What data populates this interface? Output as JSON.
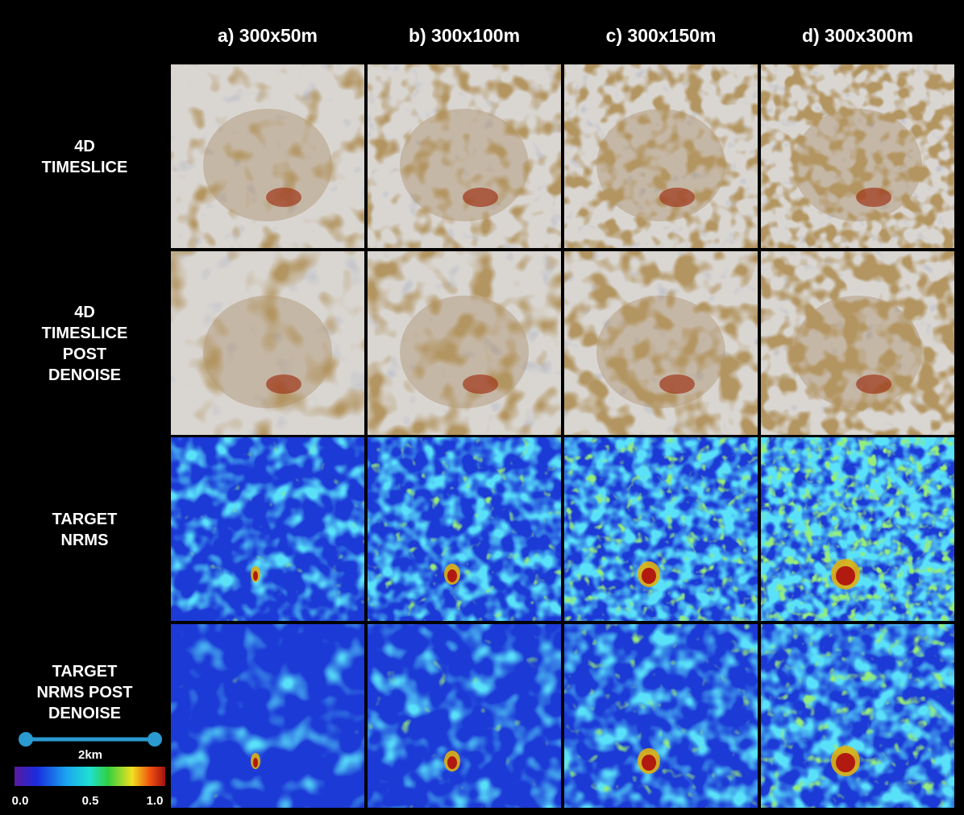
{
  "columns": [
    "a) 300x50m",
    "b) 300x100m",
    "c) 300x150m",
    "d) 300x300m"
  ],
  "rows": [
    [
      "4D",
      "TIMESLICE"
    ],
    [
      "4D",
      "TIMESLICE",
      "POST",
      "DENOISE"
    ],
    [
      "TARGET",
      "NRMS"
    ],
    [
      "TARGET",
      "NRMS POST",
      "DENOISE"
    ]
  ],
  "scale_bar": {
    "label": "2km"
  },
  "colorbar": {
    "ticks": [
      "0.0",
      "0.5",
      "1.0"
    ]
  }
}
